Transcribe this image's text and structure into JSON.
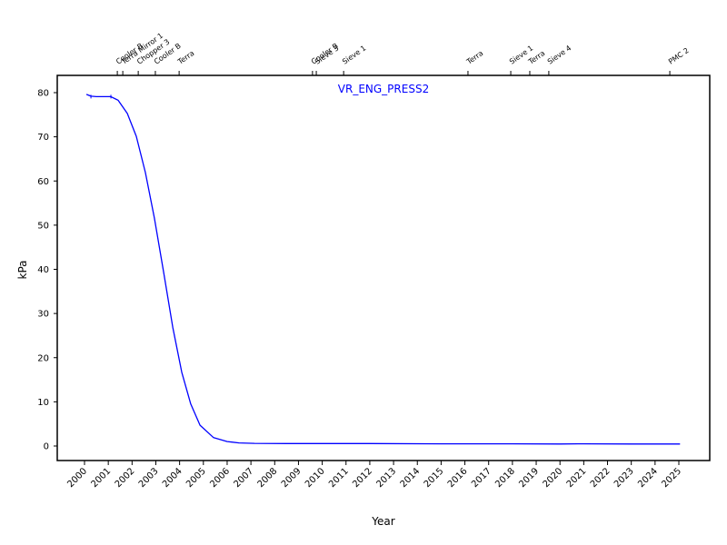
{
  "chart_data": {
    "type": "line",
    "title": "VR_ENG_PRESS2",
    "xlabel": "Year",
    "ylabel": "kPa",
    "xlim": [
      1999.2,
      2026.4
    ],
    "ylim": [
      -3.5,
      84
    ],
    "grid": false,
    "legend": null,
    "x_ticks": [
      2000,
      2001,
      2002,
      2003,
      2004,
      2005,
      2006,
      2007,
      2008,
      2009,
      2010,
      2011,
      2012,
      2013,
      2014,
      2015,
      2016,
      2017,
      2018,
      2019,
      2020,
      2021,
      2022,
      2023,
      2024,
      2025
    ],
    "x_tick_labels": [
      "2000",
      "2001",
      "2002",
      "2003",
      "2004",
      "2005",
      "2006",
      "2007",
      "2008",
      "2009",
      "2010",
      "2011",
      "2012",
      "2013",
      "2014",
      "2015",
      "2016",
      "2017",
      "2018",
      "2019",
      "2020",
      "2021",
      "2022",
      "2023",
      "2024",
      "2025"
    ],
    "y_ticks": [
      0,
      10,
      20,
      30,
      40,
      50,
      60,
      70,
      80
    ],
    "y_tick_labels": [
      "0",
      "10",
      "20",
      "30",
      "40",
      "50",
      "60",
      "70",
      "80"
    ],
    "series": [
      {
        "name": "VR_ENG_PRESS2",
        "color": "#0000ff",
        "x": [
          2000.08,
          2000.27,
          2000.5,
          2000.8,
          2001.11,
          2001.41,
          2001.8,
          2002.18,
          2002.56,
          2002.94,
          2003.33,
          2003.71,
          2004.09,
          2004.47,
          2004.86,
          2005.43,
          2006.0,
          2006.5,
          2007.15,
          2008.5,
          2010.0,
          2012.0,
          2015.0,
          2018.0,
          2020.0,
          2021.0,
          2023.0,
          2025.05
        ],
        "y": [
          79.6,
          79.2,
          79.1,
          79.1,
          79.1,
          78.3,
          75.3,
          70.1,
          61.9,
          51.6,
          39.3,
          26.9,
          16.7,
          9.5,
          4.7,
          1.9,
          1.0,
          0.7,
          0.6,
          0.55,
          0.55,
          0.55,
          0.5,
          0.5,
          0.45,
          0.5,
          0.45,
          0.45
        ]
      }
    ],
    "event_markers": [
      {
        "label": "Cooler B",
        "x": 2001.38
      },
      {
        "label": "Terra Mirror 1",
        "x": 2001.61
      },
      {
        "label": "Chopper 3",
        "x": 2002.26
      },
      {
        "label": "Cooler B",
        "x": 2002.98
      },
      {
        "label": "Terra",
        "x": 2003.98
      },
      {
        "label": "Cooler B",
        "x": 2009.59
      },
      {
        "label": "Sieve 3",
        "x": 2009.75
      },
      {
        "label": "Sieve 1",
        "x": 2010.9
      },
      {
        "label": "Terra",
        "x": 2016.13
      },
      {
        "label": "Sieve 1",
        "x": 2017.93
      },
      {
        "label": "Terra",
        "x": 2018.73
      },
      {
        "label": "Sieve 4",
        "x": 2019.53
      },
      {
        "label": "PMC 2",
        "x": 2024.62
      }
    ]
  },
  "labels": {
    "title": "VR_ENG_PRESS2",
    "xlabel": "Year",
    "ylabel": "kPa"
  },
  "colors": {
    "series": "#0000ff",
    "axes": "#000000",
    "background": "#ffffff"
  }
}
